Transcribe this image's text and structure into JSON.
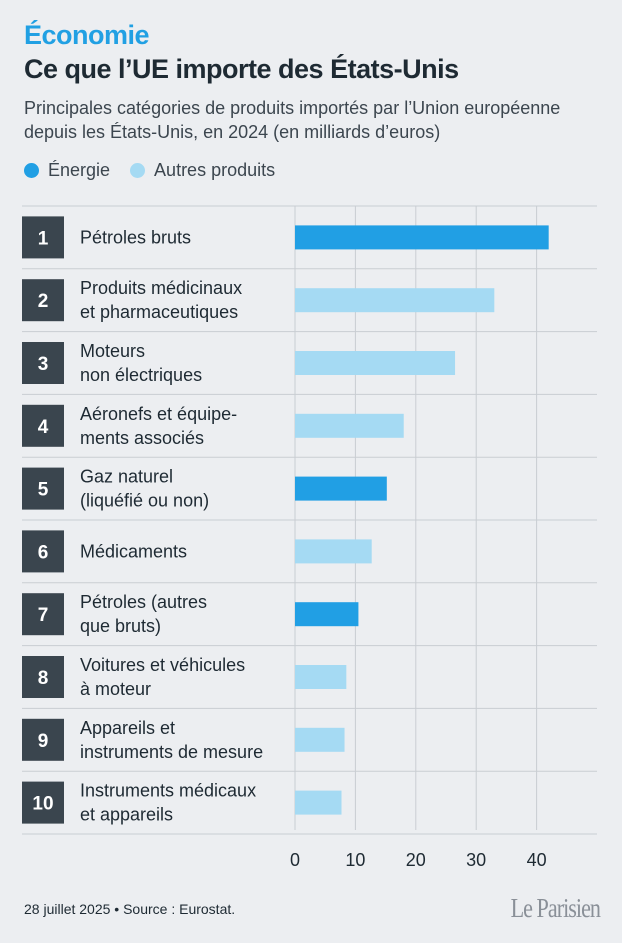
{
  "header": {
    "kicker": "Économie",
    "title": "Ce que l’UE importe des États-Unis",
    "subtitle": "Principales catégories de produits importés par l’Union européenne depuis les États-Unis, en 2024 (en milliards d’euros)"
  },
  "legend": {
    "energy_label": "Énergie",
    "other_label": "Autres produits"
  },
  "colors": {
    "energy": "#219fe4",
    "other": "#a5daf3",
    "rank_box": "#3a454e",
    "background": "#eceef1",
    "gridline": "#c9cdd2"
  },
  "chart_data": {
    "type": "bar",
    "orientation": "horizontal",
    "categories": [
      [
        "Pétroles bruts"
      ],
      [
        "Produits médicinaux",
        "et pharmaceutiques"
      ],
      [
        "Moteurs",
        "non électriques"
      ],
      [
        "Aéronefs et équipe-",
        "ments associés"
      ],
      [
        "Gaz naturel",
        "(liquéfié ou non)"
      ],
      [
        "Médicaments"
      ],
      [
        "Pétroles (autres",
        "que bruts)"
      ],
      [
        "Voitures et véhicules",
        "à moteur"
      ],
      [
        "Appareils et",
        "instruments de mesure"
      ],
      [
        "Instruments médicaux",
        "et appareils"
      ]
    ],
    "ranks": [
      "1",
      "2",
      "3",
      "4",
      "5",
      "6",
      "7",
      "8",
      "9",
      "10"
    ],
    "values": [
      42,
      33,
      26.5,
      18,
      15.2,
      12.7,
      10.5,
      8.5,
      8.2,
      7.7
    ],
    "groups": [
      "Énergie",
      "Autres produits",
      "Autres produits",
      "Autres produits",
      "Énergie",
      "Autres produits",
      "Énergie",
      "Autres produits",
      "Autres produits",
      "Autres produits"
    ],
    "xlim": [
      0,
      50
    ],
    "xticks": [
      0,
      10,
      20,
      30,
      40
    ],
    "xlabel": "",
    "ylabel": "",
    "grid": true
  },
  "footer": {
    "source": "28 juillet 2025 • Source : Eurostat.",
    "logo": "Le Parisien"
  }
}
